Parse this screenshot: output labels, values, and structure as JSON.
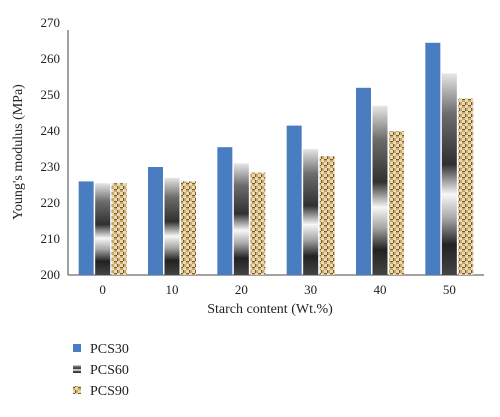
{
  "chart_data": {
    "type": "bar",
    "xlabel": "Starch content (Wt.%)",
    "ylabel": "Young's modulus (MPa)",
    "categories": [
      "0",
      "10",
      "20",
      "30",
      "40",
      "50"
    ],
    "ylim": [
      200,
      270
    ],
    "yticks": [
      200,
      210,
      220,
      230,
      240,
      250,
      260,
      270
    ],
    "grid": false,
    "legend_position": "bottom-left",
    "series": [
      {
        "name": "PCS30",
        "values": [
          226,
          230,
          235.5,
          241.5,
          252,
          264.5
        ],
        "color": "#4a7cc2",
        "pattern": "solid"
      },
      {
        "name": "PCS60",
        "values": [
          225.5,
          227,
          231,
          235,
          247,
          256
        ],
        "color": "#7a7a7a",
        "pattern": "metallic-gradient"
      },
      {
        "name": "PCS90",
        "values": [
          225.5,
          226,
          228.5,
          233,
          240,
          249
        ],
        "color": "#b8975a",
        "pattern": "woven-texture"
      }
    ]
  }
}
